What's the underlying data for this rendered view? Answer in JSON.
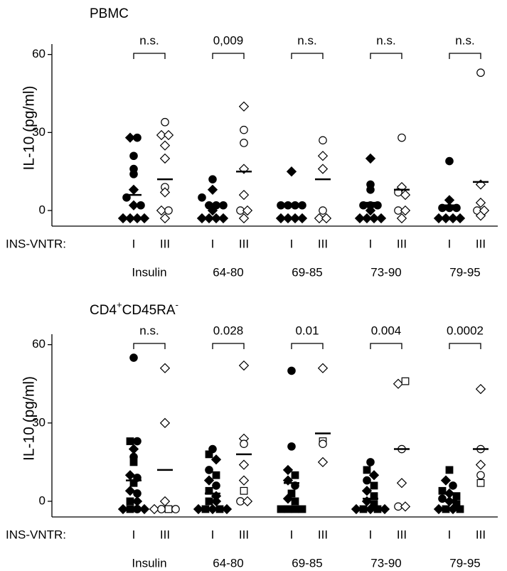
{
  "chart_data": [
    {
      "type": "strip",
      "title_parts": [
        {
          "text": "PBMC"
        }
      ],
      "y_label": "IL-10 (pg/ml)",
      "row_label": "INS-VNTR:",
      "ylim": [
        -6,
        64
      ],
      "yticks": [
        0,
        30,
        60
      ],
      "groups": [
        {
          "name": "Insulin",
          "p": "n.s.",
          "columns": [
            {
              "name": "I",
              "filled": true,
              "mean": 6,
              "values": [
                28,
                28,
                21,
                16,
                14,
                8,
                5,
                2,
                2,
                -3,
                -3,
                -3,
                -3
              ],
              "markers": [
                "d",
                "c",
                "c",
                "c",
                "c",
                "d",
                "c",
                "d",
                "c",
                "d",
                "d",
                "d",
                "d"
              ]
            },
            {
              "name": "III",
              "filled": false,
              "mean": 12,
              "values": [
                34,
                29,
                29,
                25,
                20,
                9,
                7,
                0,
                0,
                -3
              ],
              "markers": [
                "c",
                "d",
                "d",
                "d",
                "d",
                "c",
                "d",
                "d",
                "c",
                "d"
              ]
            }
          ]
        },
        {
          "name": "64-80",
          "p": "0,009",
          "columns": [
            {
              "name": "I",
              "filled": true,
              "mean": 2,
              "values": [
                12,
                8,
                5,
                2,
                2,
                2,
                0,
                -3,
                -3,
                -3,
                -3
              ],
              "markers": [
                "c",
                "d",
                "c",
                "c",
                "c",
                "c",
                "d",
                "d",
                "d",
                "d",
                "d"
              ]
            },
            {
              "name": "III",
              "filled": false,
              "mean": 15,
              "values": [
                40,
                31,
                26,
                16,
                6,
                0,
                0,
                -3
              ],
              "markers": [
                "d",
                "c",
                "c",
                "d",
                "d",
                "c",
                "d",
                "d"
              ]
            }
          ]
        },
        {
          "name": "69-85",
          "p": "n.s.",
          "columns": [
            {
              "name": "I",
              "filled": true,
              "mean": 2,
              "values": [
                15,
                2,
                2,
                2,
                2,
                -3,
                -3,
                -3,
                -3
              ],
              "markers": [
                "d",
                "c",
                "c",
                "c",
                "c",
                "d",
                "d",
                "d",
                "d"
              ]
            },
            {
              "name": "III",
              "filled": false,
              "mean": 12,
              "values": [
                27,
                21,
                16,
                0,
                -3,
                -3
              ],
              "markers": [
                "c",
                "d",
                "d",
                "c",
                "d",
                "d"
              ]
            }
          ]
        },
        {
          "name": "73-90",
          "p": "n.s.",
          "columns": [
            {
              "name": "I",
              "filled": true,
              "mean": 3,
              "values": [
                20,
                10,
                8,
                2,
                2,
                2,
                0,
                -3,
                -3,
                -3,
                -3
              ],
              "markers": [
                "d",
                "c",
                "c",
                "c",
                "c",
                "c",
                "d",
                "d",
                "d",
                "d",
                "d"
              ]
            },
            {
              "name": "III",
              "filled": false,
              "mean": 8,
              "values": [
                28,
                9,
                7,
                6,
                0,
                0,
                -3
              ],
              "markers": [
                "c",
                "d",
                "c",
                "d",
                "c",
                "d",
                "d"
              ]
            }
          ]
        },
        {
          "name": "79-95",
          "p": "n.s.",
          "columns": [
            {
              "name": "I",
              "filled": true,
              "mean": 2,
              "values": [
                19,
                4,
                1,
                1,
                1,
                -3,
                -3,
                -3,
                -3
              ],
              "markers": [
                "c",
                "d",
                "c",
                "c",
                "c",
                "d",
                "d",
                "d",
                "d"
              ]
            },
            {
              "name": "III",
              "filled": false,
              "mean": 11,
              "values": [
                53,
                10,
                3,
                0,
                -2,
                0
              ],
              "markers": [
                "c",
                "d",
                "d",
                "c",
                "d",
                "d"
              ]
            }
          ]
        }
      ]
    },
    {
      "type": "strip",
      "title_parts": [
        {
          "text": "CD4"
        },
        {
          "text": "+",
          "sup": true
        },
        {
          "text": "CD45RA"
        },
        {
          "text": "-",
          "sup": true
        }
      ],
      "y_label": "IL-10 (pg/ml)",
      "row_label": "INS-VNTR:",
      "ylim": [
        -6,
        64
      ],
      "yticks": [
        0,
        30,
        60
      ],
      "groups": [
        {
          "name": "Insulin",
          "p": "n.s.",
          "columns": [
            {
              "name": "I",
              "filled": true,
              "mean": 8,
              "values": [
                55,
                23,
                23,
                20,
                17,
                15,
                10,
                9,
                7,
                4,
                3,
                0,
                0,
                -3,
                -3,
                -3,
                -3
              ],
              "markers": [
                "c",
                "s",
                "c",
                "d",
                "c",
                "s",
                "d",
                "c",
                "s",
                "d",
                "c",
                "s",
                "d",
                "d",
                "s",
                "c",
                "d"
              ]
            },
            {
              "name": "III",
              "filled": false,
              "mean": 12,
              "values": [
                51,
                30,
                0,
                -3,
                -3,
                -3,
                -3
              ],
              "markers": [
                "d",
                "d",
                "d",
                "d",
                "c",
                "s",
                "c"
              ]
            }
          ]
        },
        {
          "name": "64-80",
          "p": "0.028",
          "columns": [
            {
              "name": "I",
              "filled": true,
              "mean": 3,
              "values": [
                20,
                18,
                16,
                12,
                10,
                8,
                6,
                4,
                2,
                0,
                0,
                -3,
                -3,
                -3,
                -3,
                -3
              ],
              "markers": [
                "c",
                "s",
                "d",
                "c",
                "s",
                "d",
                "c",
                "s",
                "d",
                "s",
                "d",
                "d",
                "s",
                "d",
                "s",
                "d"
              ]
            },
            {
              "name": "III",
              "filled": false,
              "mean": 18,
              "values": [
                52,
                24,
                22,
                14,
                8,
                4,
                0,
                0
              ],
              "markers": [
                "d",
                "d",
                "c",
                "d",
                "d",
                "s",
                "c",
                "d"
              ]
            }
          ]
        },
        {
          "name": "69-85",
          "p": "0.01",
          "columns": [
            {
              "name": "I",
              "filled": true,
              "mean": 7,
              "values": [
                50,
                21,
                12,
                10,
                8,
                6,
                3,
                1,
                0,
                -3,
                -3,
                -3,
                -3
              ],
              "markers": [
                "c",
                "c",
                "d",
                "s",
                "d",
                "c",
                "s",
                "d",
                "s",
                "s",
                "s",
                "s",
                "s"
              ]
            },
            {
              "name": "III",
              "filled": false,
              "mean": 26,
              "values": [
                51,
                23,
                22,
                15
              ],
              "markers": [
                "d",
                "s",
                "c",
                "d"
              ]
            }
          ]
        },
        {
          "name": "73-90",
          "p": "0.004",
          "columns": [
            {
              "name": "I",
              "filled": true,
              "mean": 1,
              "values": [
                15,
                12,
                10,
                8,
                6,
                4,
                2,
                0,
                -1,
                -3,
                -3,
                -3,
                -3,
                -3
              ],
              "markers": [
                "c",
                "s",
                "d",
                "c",
                "s",
                "d",
                "s",
                "d",
                "s",
                "d",
                "s",
                "d",
                "s",
                "d"
              ]
            },
            {
              "name": "III",
              "filled": false,
              "mean": 20,
              "values": [
                45,
                46,
                20,
                7,
                -2,
                -2
              ],
              "markers": [
                "d",
                "s",
                "c",
                "d",
                "c",
                "d"
              ]
            }
          ]
        },
        {
          "name": "79-95",
          "p": "0.0002",
          "columns": [
            {
              "name": "I",
              "filled": true,
              "mean": 0.5,
              "values": [
                12,
                8,
                6,
                4,
                3,
                2,
                1,
                0,
                -1,
                -3,
                -3,
                -3,
                -3
              ],
              "markers": [
                "s",
                "d",
                "c",
                "s",
                "d",
                "s",
                "c",
                "d",
                "s",
                "d",
                "s",
                "d",
                "s"
              ]
            },
            {
              "name": "III",
              "filled": false,
              "mean": 20,
              "values": [
                43,
                20,
                14,
                10,
                7
              ],
              "markers": [
                "d",
                "c",
                "d",
                "c",
                "s"
              ]
            }
          ]
        }
      ]
    }
  ]
}
